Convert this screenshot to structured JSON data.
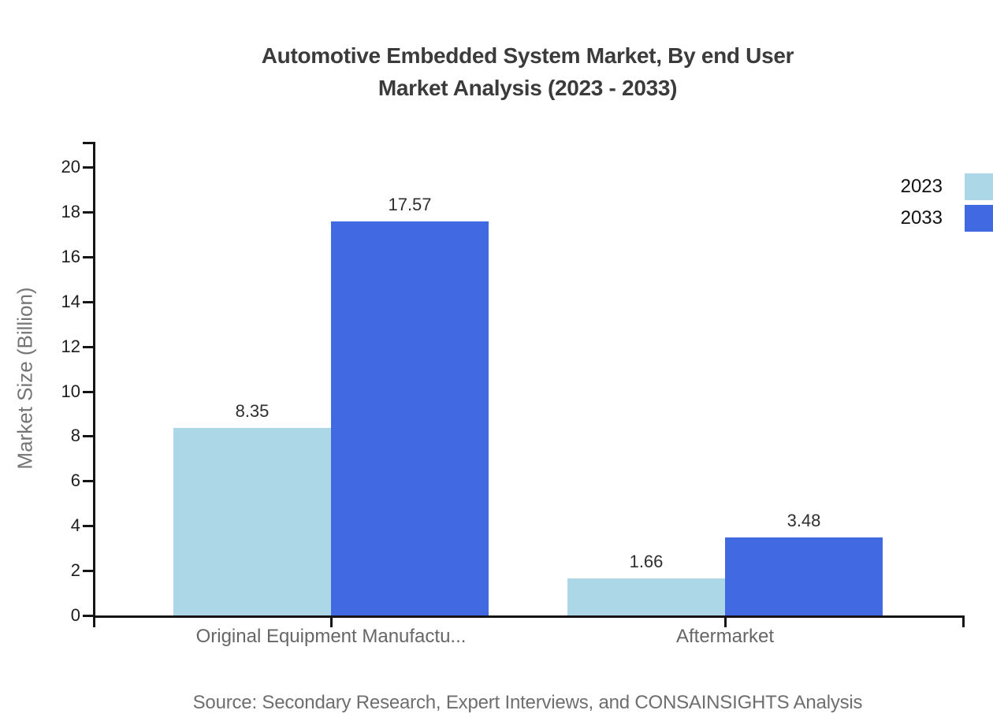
{
  "title": {
    "line1": "Automotive Embedded System Market, By end User",
    "line2": "Market Analysis (2023 - 2033)"
  },
  "source": "Source: Secondary Research, Expert Interviews, and CONSAINSIGHTS Analysis",
  "chart_data": {
    "type": "bar",
    "title": "Automotive Embedded System Market, By end User Market Analysis (2023 - 2033)",
    "categories": [
      "Original Equipment Manufactu...",
      "Aftermarket"
    ],
    "series": [
      {
        "name": "2023",
        "values": [
          8.35,
          1.66
        ],
        "color": "#abd7e6"
      },
      {
        "name": "2033",
        "values": [
          17.57,
          3.48
        ],
        "color": "#4169e1"
      }
    ],
    "xlabel": "",
    "ylabel": "Market Size (Billion)",
    "ylim": [
      0,
      20
    ],
    "yticks": [
      0,
      2,
      4,
      6,
      8,
      10,
      12,
      14,
      16,
      18,
      20
    ],
    "grid": false,
    "legend_position": "top-right",
    "bar_label_decimals": 2
  }
}
